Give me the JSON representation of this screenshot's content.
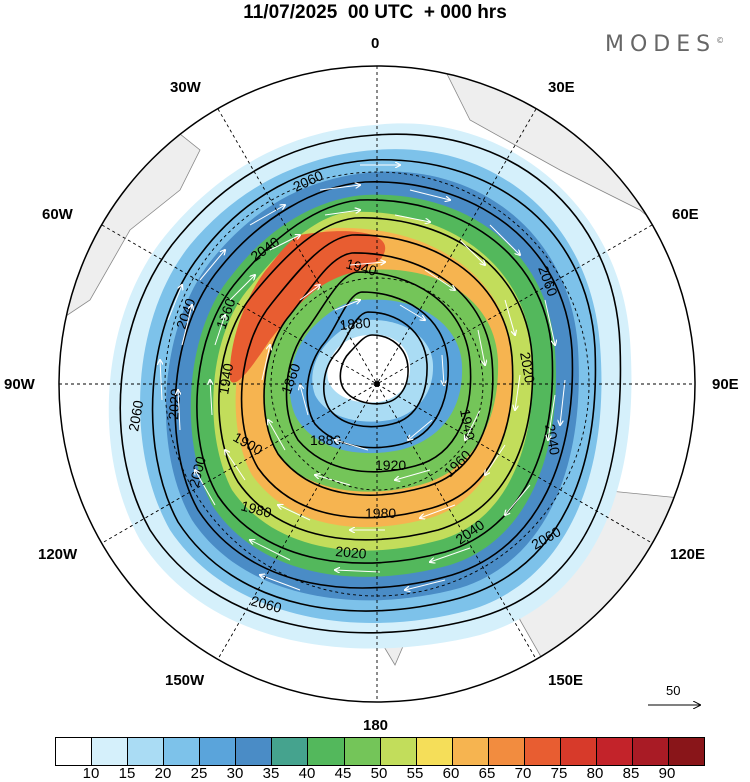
{
  "title": "11/07/2025  00 UTC  + 000 hrs",
  "brand": "MODES",
  "brand_mark": "©",
  "longitude_labels": {
    "lon_0": "0",
    "lon_30e": "30E",
    "lon_60e": "60E",
    "lon_90e": "90E",
    "lon_120e": "120E",
    "lon_150e": "150E",
    "lon_180": "180",
    "lon_150w": "150W",
    "lon_120w": "120W",
    "lon_90w": "90W",
    "lon_60w": "60W",
    "lon_30w": "30W"
  },
  "contour_labels": [
    "2060",
    "2040",
    "2020",
    "2000",
    "1980",
    "1960",
    "1940",
    "1920",
    "1900",
    "1880",
    "1860"
  ],
  "colorbar": {
    "ticks": [
      "10",
      "15",
      "20",
      "25",
      "30",
      "35",
      "40",
      "45",
      "50",
      "55",
      "60",
      "65",
      "70",
      "75",
      "80",
      "85",
      "90"
    ],
    "colors": [
      "#ffffff",
      "#d5f0fb",
      "#aadcf4",
      "#7dc2ea",
      "#5aa4db",
      "#4a8cc6",
      "#45a38e",
      "#53b85c",
      "#74c559",
      "#c2dd5b",
      "#f5de59",
      "#f6b450",
      "#f28c3f",
      "#e85d31",
      "#d73a2a",
      "#c3232a",
      "#a91b25",
      "#891519"
    ]
  },
  "reference_vector": {
    "label": "50"
  }
}
